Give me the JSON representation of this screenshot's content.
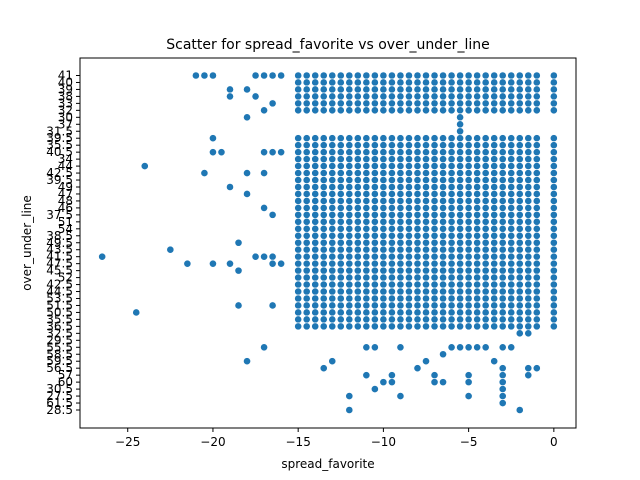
{
  "chart_data": {
    "type": "scatter",
    "title": "Scatter for spread_favorite vs over_under_line",
    "xlabel": "spread_favorite",
    "ylabel": "over_under_line",
    "xlim": [
      -27.8,
      1.3
    ],
    "x_ticks": [
      "−25",
      "−20",
      "−15",
      "−10",
      "−5",
      "0"
    ],
    "x_tick_values": [
      -25,
      -20,
      -15,
      -10,
      -5,
      0
    ],
    "y_categories": [
      "41",
      "40",
      "39",
      "38",
      "33",
      "32",
      "30",
      "37",
      "31.5",
      "39.5",
      "35.5",
      "40.5",
      "34",
      "44",
      "42.5",
      "39.5",
      "49",
      "47",
      "48",
      "46",
      "37.5",
      "51",
      "54",
      "38.5",
      "49.5",
      "43.5",
      "41.5",
      "47.5",
      "45.5",
      "52",
      "42.5",
      "44.5",
      "53.5",
      "51.5",
      "50.5",
      "35.5",
      "36.5",
      "32.5",
      "29.5",
      "55.5",
      "58.5",
      "59.5",
      "56.5",
      "57",
      "60",
      "30.5",
      "27.5",
      "61.5",
      "28.5"
    ],
    "marker_color": "#1f77b4",
    "grid": false,
    "legend": "none",
    "x_dense_range": [
      -15,
      -1
    ],
    "x_step": 0.5,
    "dense_rows": [
      0,
      1,
      2,
      3,
      4,
      5,
      9,
      10,
      11,
      12,
      13,
      14,
      15,
      16,
      17,
      18,
      19,
      20,
      21,
      22,
      23,
      24,
      25,
      26,
      27,
      28,
      29,
      30,
      31,
      32,
      33,
      34,
      35,
      36
    ],
    "scattered_points": [
      {
        "x": -21,
        "y": "41"
      },
      {
        "x": -20.5,
        "y": "41"
      },
      {
        "x": -20,
        "y": "41"
      },
      {
        "x": -17.5,
        "y": "41"
      },
      {
        "x": -17,
        "y": "41"
      },
      {
        "x": -16.5,
        "y": "41"
      },
      {
        "x": -16,
        "y": "41"
      },
      {
        "x": -19,
        "y": "39"
      },
      {
        "x": -18,
        "y": "39"
      },
      {
        "x": -19,
        "y": "38"
      },
      {
        "x": -17.5,
        "y": "38"
      },
      {
        "x": -16.5,
        "y": "33"
      },
      {
        "x": -17,
        "y": "32"
      },
      {
        "x": -18,
        "y": "30"
      },
      {
        "x": -24,
        "y": "44"
      },
      {
        "x": -20,
        "y": "40.5"
      },
      {
        "x": -19.5,
        "y": "40.5"
      },
      {
        "x": -17,
        "y": "40.5"
      },
      {
        "x": -16.5,
        "y": "40.5"
      },
      {
        "x": -16,
        "y": "40.5"
      },
      {
        "x": -18,
        "y": "42.5"
      },
      {
        "x": -20,
        "y": "39.5"
      },
      {
        "x": -19,
        "y": "49"
      },
      {
        "x": -18,
        "y": "47"
      },
      {
        "x": -17,
        "y": "46"
      },
      {
        "x": -16.5,
        "y": "37.5"
      },
      {
        "x": -18.5,
        "y": "49.5"
      },
      {
        "x": -22.5,
        "y": "43.5"
      },
      {
        "x": -26.5,
        "y": "41.5"
      },
      {
        "x": -20,
        "y": "47.5"
      },
      {
        "x": -19,
        "y": "47.5"
      },
      {
        "x": -18.5,
        "y": "45.5"
      },
      {
        "x": -17.5,
        "y": "41.5"
      },
      {
        "x": -17,
        "y": "41.5"
      },
      {
        "x": -16.5,
        "y": "41.5"
      },
      {
        "x": -21.5,
        "y": "47.5"
      },
      {
        "x": -16.5,
        "y": "47.5"
      },
      {
        "x": -16,
        "y": "47.5"
      },
      {
        "x": -20.5,
        "y": "42.5"
      },
      {
        "x": -17,
        "y": "42.5"
      },
      {
        "x": -18.5,
        "y": "51.5"
      },
      {
        "x": -16.5,
        "y": "51.5"
      },
      {
        "x": -24.5,
        "y": "50.5"
      },
      {
        "x": -13.5,
        "y": "51.5"
      },
      {
        "x": -12.5,
        "y": "53.5"
      },
      {
        "x": -11.5,
        "y": "35.5"
      },
      {
        "x": -18,
        "y": "59.5"
      },
      {
        "x": -17,
        "y": "55.5"
      },
      {
        "x": -13,
        "y": "59.5"
      },
      {
        "x": -13.5,
        "y": "56.5"
      },
      {
        "x": -11,
        "y": "55.5"
      },
      {
        "x": -10.5,
        "y": "55.5"
      },
      {
        "x": -9,
        "y": "55.5"
      },
      {
        "x": -11,
        "y": "57"
      },
      {
        "x": -10,
        "y": "60"
      },
      {
        "x": -9.5,
        "y": "60"
      },
      {
        "x": -9.5,
        "y": "57"
      },
      {
        "x": -10.5,
        "y": "30.5"
      },
      {
        "x": -12,
        "y": "27.5"
      },
      {
        "x": -12,
        "y": "28.5"
      },
      {
        "x": -9,
        "y": "27.5"
      },
      {
        "x": -7.5,
        "y": "59.5"
      },
      {
        "x": -7,
        "y": "57"
      },
      {
        "x": -6.5,
        "y": "60"
      },
      {
        "x": -7,
        "y": "60"
      },
      {
        "x": -6.5,
        "y": "58.5"
      },
      {
        "x": -8,
        "y": "56.5"
      },
      {
        "x": -6,
        "y": "55.5"
      },
      {
        "x": -5.5,
        "y": "55.5"
      },
      {
        "x": -5,
        "y": "55.5"
      },
      {
        "x": -4.5,
        "y": "55.5"
      },
      {
        "x": -4,
        "y": "55.5"
      },
      {
        "x": -3,
        "y": "55.5"
      },
      {
        "x": -2.5,
        "y": "55.5"
      },
      {
        "x": -3.5,
        "y": "59.5"
      },
      {
        "x": -3,
        "y": "56.5"
      },
      {
        "x": -5,
        "y": "57"
      },
      {
        "x": -5,
        "y": "60"
      },
      {
        "x": -5,
        "y": "27.5"
      },
      {
        "x": -3,
        "y": "57"
      },
      {
        "x": -3,
        "y": "60"
      },
      {
        "x": -3,
        "y": "30.5"
      },
      {
        "x": -3,
        "y": "27.5"
      },
      {
        "x": -3,
        "y": "61.5"
      },
      {
        "x": -2,
        "y": "28.5"
      },
      {
        "x": -1.5,
        "y": "57"
      },
      {
        "x": -1.5,
        "y": "56.5"
      },
      {
        "x": -1,
        "y": "56.5"
      },
      {
        "x": -5.5,
        "y": "36.5"
      },
      {
        "x": -4,
        "y": "36.5"
      },
      {
        "x": -2.5,
        "y": "36.5"
      },
      {
        "x": -2,
        "y": "32.5"
      },
      {
        "x": -1.5,
        "y": "32.5"
      },
      {
        "x": -5.5,
        "y": "31.5"
      },
      {
        "x": -5.5,
        "y": "30"
      },
      {
        "x": -5.5,
        "y": "37"
      }
    ]
  }
}
